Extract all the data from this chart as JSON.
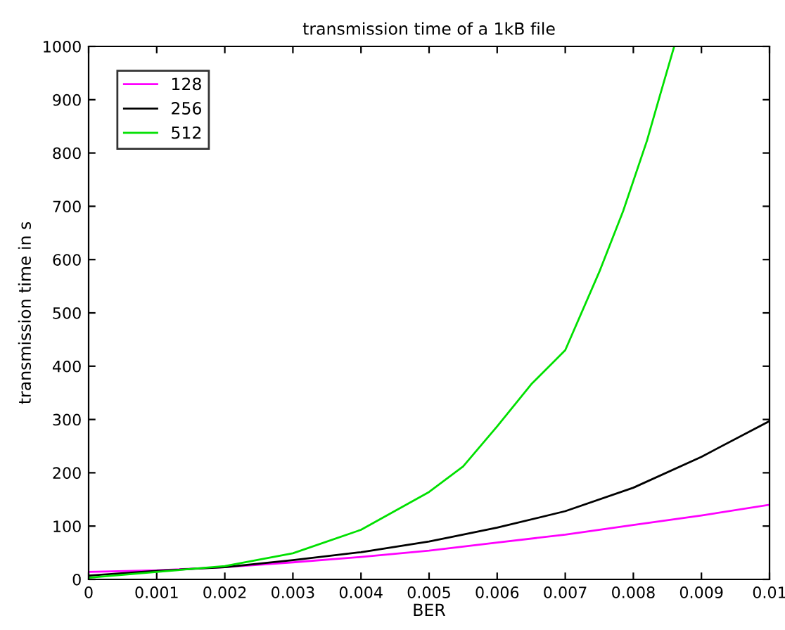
{
  "chart_data": {
    "type": "line",
    "title": "transmission time of a 1kB file",
    "xlabel": "BER",
    "ylabel": "transmission time in s",
    "xlim": [
      0,
      0.01
    ],
    "ylim": [
      0,
      1000
    ],
    "xticks": [
      0,
      0.001,
      0.002,
      0.003,
      0.004,
      0.005,
      0.006,
      0.007,
      0.008,
      0.009,
      {
        "value": 0.01,
        "label": "0.01"
      }
    ],
    "yticks": [
      0,
      100,
      200,
      300,
      400,
      500,
      600,
      700,
      800,
      900,
      1000
    ],
    "grid": false,
    "legend": "top left",
    "marker": "none",
    "line_style": "solid",
    "series": [
      {
        "name": "128",
        "color": "#ff00ff",
        "x": [
          0,
          0.001,
          0.002,
          0.003,
          0.004,
          0.005,
          0.006,
          0.007,
          0.008,
          0.009,
          0.01
        ],
        "values": [
          14,
          17,
          23,
          32,
          42,
          54,
          69,
          84,
          102,
          120,
          140
        ]
      },
      {
        "name": "256",
        "color": "#000000",
        "x": [
          0,
          0.001,
          0.002,
          0.003,
          0.004,
          0.005,
          0.006,
          0.007,
          0.008,
          0.009,
          0.01
        ],
        "values": [
          7,
          16,
          23,
          36,
          51,
          71,
          97,
          128,
          172,
          230,
          297
        ]
      },
      {
        "name": "512",
        "color": "#00e000",
        "x": [
          0,
          0.001,
          0.002,
          0.003,
          0.004,
          0.005,
          0.0055,
          0.006,
          0.0065,
          0.007,
          0.0075,
          0.00785,
          0.0082,
          0.0084,
          0.0086
        ],
        "values": [
          3,
          14,
          25,
          49,
          93,
          164,
          212,
          287,
          366,
          430,
          577,
          691,
          823,
          912,
          1000
        ]
      }
    ]
  }
}
